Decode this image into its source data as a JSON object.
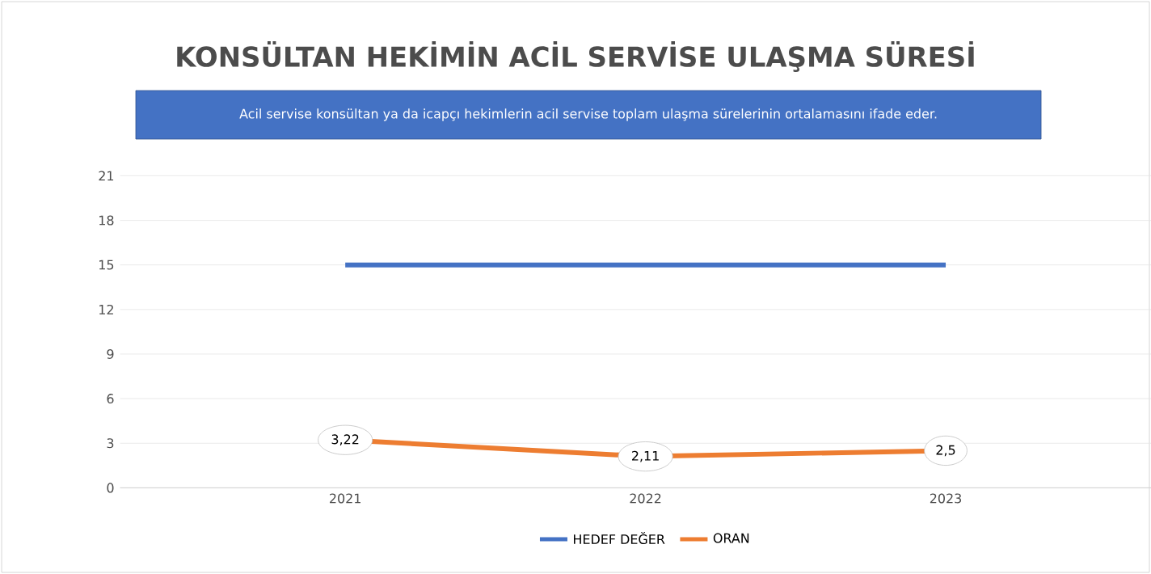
{
  "chart_data": {
    "type": "line",
    "title": "KONSÜLTAN HEKİMİN ACİL SERVİSE ULAŞMA SÜRESİ",
    "subtitle": "Acil servise  konsültan ya da icapçı hekimlerin acil servise toplam ulaşma sürelerinin ortalamasını ifade eder.",
    "categories": [
      "2021",
      "2022",
      "2023"
    ],
    "series": [
      {
        "name": "HEDEF DEĞER",
        "color": "#4472c4",
        "values": [
          15,
          15,
          15
        ]
      },
      {
        "name": "ORAN",
        "color": "#ed7d31",
        "values": [
          3.22,
          2.11,
          2.5
        ],
        "value_labels": [
          "3,22",
          "2,11",
          "2,5"
        ]
      }
    ],
    "ylim": [
      0,
      21
    ],
    "yticks": [
      0,
      3,
      6,
      9,
      12,
      15,
      18,
      21
    ],
    "grid": "y",
    "legend": "bottom",
    "marker": "none",
    "line_style": "solid"
  }
}
